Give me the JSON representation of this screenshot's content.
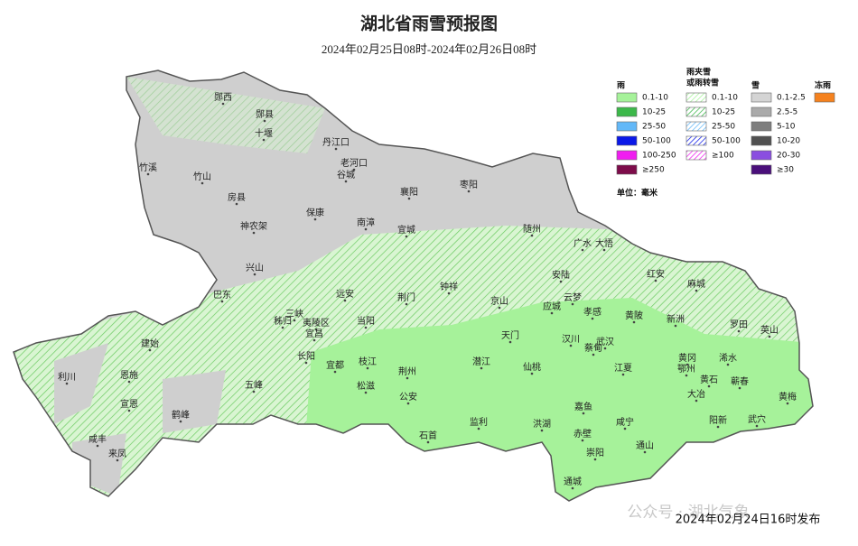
{
  "title": "湖北省雨雪预报图",
  "subtitle": "2024年02月25日08时-2024年02月26日08时",
  "legend": {
    "rain": {
      "header": "雨",
      "items": [
        {
          "label": "0.1-10",
          "color": "#a6f29a"
        },
        {
          "label": "10-25",
          "color": "#3cb84a"
        },
        {
          "label": "25-50",
          "color": "#63b8f8"
        },
        {
          "label": "50-100",
          "color": "#0a18e8"
        },
        {
          "label": "100-250",
          "color": "#f01ef0"
        },
        {
          "label": "≥250",
          "color": "#7d0c4a"
        }
      ]
    },
    "sleet": {
      "header_lines": [
        "雨夹雪",
        "或雨转雪"
      ],
      "items": [
        {
          "label": "0.1-10",
          "color": "#a6f29a"
        },
        {
          "label": "10-25",
          "color": "#3cb84a"
        },
        {
          "label": "25-50",
          "color": "#63b8f8"
        },
        {
          "label": "50-100",
          "color": "#0a18e8"
        },
        {
          "label": "≥100",
          "color": "#f01ef0"
        }
      ]
    },
    "snow": {
      "header": "雪",
      "items": [
        {
          "label": "0.1-2.5",
          "color": "#d4d4d4"
        },
        {
          "label": "2.5-5",
          "color": "#aaaaaa"
        },
        {
          "label": "5-10",
          "color": "#7e7e7e"
        },
        {
          "label": "10-20",
          "color": "#505050"
        },
        {
          "label": "20-30",
          "color": "#8a4ee0"
        },
        {
          "label": "≥30",
          "color": "#4a0f7a"
        }
      ]
    },
    "freezing_rain": {
      "header": "冻雨",
      "color": "#f5821f"
    },
    "unit": "单位：毫米"
  },
  "cities": [
    "郧西",
    "郧县",
    "十堰",
    "丹江口",
    "老河口",
    "谷城",
    "竹溪",
    "竹山",
    "房县",
    "襄阳",
    "枣阳",
    "保康",
    "南漳",
    "宜城",
    "随州",
    "神农架",
    "广水",
    "大悟",
    "兴山",
    "安陆",
    "红安",
    "巴东",
    "荆门",
    "钟祥",
    "京山",
    "应城",
    "云梦",
    "孝感",
    "黄陂",
    "麻城",
    "秭归",
    "远安",
    "新洲",
    "罗田",
    "英山",
    "三峡",
    "夷陵区",
    "宜昌",
    "当阳",
    "建始",
    "天门",
    "汉川",
    "武汉",
    "蔡甸",
    "黄冈",
    "浠水",
    "利川",
    "恩施",
    "长阳",
    "宜都",
    "枝江",
    "荆州",
    "潜江",
    "仙桃",
    "江夏",
    "鄂州",
    "黄石",
    "蕲春",
    "宣恩",
    "五峰",
    "松滋",
    "公安",
    "大冶",
    "黄梅",
    "鹤峰",
    "嘉鱼",
    "阳新",
    "武穴",
    "咸宁",
    "监利",
    "洪湖",
    "赤壁",
    "咸丰",
    "石首",
    "来凤",
    "通山",
    "崇阳",
    "通城"
  ],
  "watermark": "公众号 · 湖北气象",
  "footer": "2024年02月24日16时发布"
}
